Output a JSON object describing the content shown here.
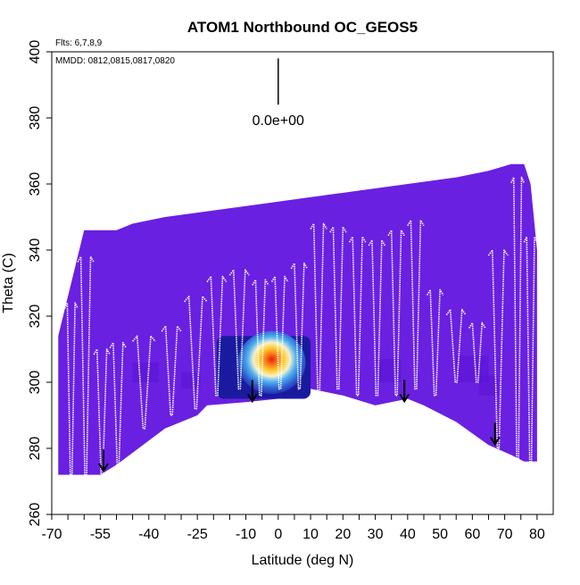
{
  "chart_data": {
    "type": "heatmap",
    "title": "ATOM1 Northbound OC_GEOS5",
    "xlabel": "Latitude (deg N)",
    "ylabel": "Theta (C)",
    "xlim": [
      -70,
      85
    ],
    "ylim": [
      260,
      400
    ],
    "x_ticks_major": [
      -70,
      -55,
      -40,
      -25,
      -10,
      0,
      10,
      20,
      30,
      40,
      50,
      60,
      70,
      80
    ],
    "x_ticks_minor": [
      -65,
      -60,
      -50,
      -45,
      -35,
      -30,
      -20,
      -15,
      -5,
      5,
      15,
      25,
      35,
      45,
      55,
      65,
      75
    ],
    "x_tick_labels": [
      "-70",
      "-55",
      "-40",
      "-25",
      "-10",
      "0",
      "10",
      "20",
      "30",
      "40",
      "50",
      "60",
      "70",
      "80"
    ],
    "y_ticks": [
      260,
      280,
      300,
      320,
      340,
      360,
      380,
      400
    ],
    "y_tick_labels": [
      "260",
      "280",
      "300",
      "320",
      "340",
      "360",
      "380",
      "400"
    ],
    "flights_note": "Flts: 6,7,8,9",
    "dates_note": "MMDD: 0812,0815,0817,0820",
    "scale_label": "0.0e+00",
    "scale_bar": {
      "x": 0,
      "y_top": 398,
      "y_bottom": 384
    },
    "colors": {
      "background_field": "#6a20e0",
      "field_shade": "#5a14d4",
      "deep_blue": "#1a1aa0",
      "mid_blue": "#2f5fd0",
      "light_blue": "#4fb0f0",
      "pale": "#f4f0d0",
      "yellow": "#ffd23a",
      "orange": "#ff8a1a",
      "red": "#e41e12",
      "flight_track": "#ffffff"
    },
    "field_top": [
      {
        "lat": -68,
        "theta": 314
      },
      {
        "lat": -67,
        "theta": 318
      },
      {
        "lat": -66,
        "theta": 322
      },
      {
        "lat": -65,
        "theta": 326
      },
      {
        "lat": -64,
        "theta": 330
      },
      {
        "lat": -63,
        "theta": 334
      },
      {
        "lat": -62,
        "theta": 338
      },
      {
        "lat": -61,
        "theta": 342
      },
      {
        "lat": -60,
        "theta": 346
      },
      {
        "lat": -50,
        "theta": 346
      },
      {
        "lat": -45,
        "theta": 348
      },
      {
        "lat": -35,
        "theta": 350
      },
      {
        "lat": -20,
        "theta": 352
      },
      {
        "lat": -5,
        "theta": 354
      },
      {
        "lat": 10,
        "theta": 356
      },
      {
        "lat": 25,
        "theta": 358
      },
      {
        "lat": 40,
        "theta": 360
      },
      {
        "lat": 55,
        "theta": 362
      },
      {
        "lat": 65,
        "theta": 364
      },
      {
        "lat": 72,
        "theta": 366
      },
      {
        "lat": 76,
        "theta": 366
      },
      {
        "lat": 78,
        "theta": 360
      },
      {
        "lat": 79,
        "theta": 350
      },
      {
        "lat": 80,
        "theta": 340
      }
    ],
    "field_bottom": [
      {
        "lat": -68,
        "theta": 272
      },
      {
        "lat": -55,
        "theta": 272
      },
      {
        "lat": -50,
        "theta": 275
      },
      {
        "lat": -35,
        "theta": 286
      },
      {
        "lat": -25,
        "theta": 290
      },
      {
        "lat": -22,
        "theta": 293
      },
      {
        "lat": -10,
        "theta": 294
      },
      {
        "lat": 0,
        "theta": 295
      },
      {
        "lat": 10,
        "theta": 298
      },
      {
        "lat": 20,
        "theta": 296
      },
      {
        "lat": 30,
        "theta": 293
      },
      {
        "lat": 40,
        "theta": 295
      },
      {
        "lat": 45,
        "theta": 293
      },
      {
        "lat": 55,
        "theta": 288
      },
      {
        "lat": 65,
        "theta": 281
      },
      {
        "lat": 72,
        "theta": 278
      },
      {
        "lat": 76,
        "theta": 276
      },
      {
        "lat": 80,
        "theta": 276
      },
      {
        "lat": 80,
        "theta": 340
      }
    ],
    "hotspot": {
      "center_lat": -2,
      "center_theta": 306,
      "extent_lat": [
        -19,
        10
      ],
      "extent_theta": [
        295,
        314
      ],
      "peak_value_label": ""
    },
    "tropopause_arrows": [
      {
        "lat": -54,
        "theta": 277
      },
      {
        "lat": -8,
        "theta": 298
      },
      {
        "lat": 39,
        "theta": 298
      },
      {
        "lat": 67,
        "theta": 285
      }
    ],
    "flight_profiles": [
      {
        "lat_start": -66,
        "lat_end": -62,
        "theta_low": 272,
        "theta_high": 324
      },
      {
        "lat_start": -62,
        "lat_end": -57,
        "theta_low": 272,
        "theta_high": 338
      },
      {
        "lat_start": -57,
        "lat_end": -52,
        "theta_low": 272,
        "theta_high": 310
      },
      {
        "lat_start": -52,
        "lat_end": -47,
        "theta_low": 275,
        "theta_high": 312
      },
      {
        "lat_start": -45,
        "lat_end": -38,
        "theta_low": 286,
        "theta_high": 314
      },
      {
        "lat_start": -36,
        "lat_end": -30,
        "theta_low": 290,
        "theta_high": 317
      },
      {
        "lat_start": -29,
        "lat_end": -22,
        "theta_low": 292,
        "theta_high": 326
      },
      {
        "lat_start": -22,
        "lat_end": -16,
        "theta_low": 296,
        "theta_high": 332
      },
      {
        "lat_start": -15,
        "lat_end": -9,
        "theta_low": 298,
        "theta_high": 334
      },
      {
        "lat_start": -8,
        "lat_end": -3,
        "theta_low": 296,
        "theta_high": 331
      },
      {
        "lat_start": -2,
        "lat_end": 3,
        "theta_low": 298,
        "theta_high": 332
      },
      {
        "lat_start": 4,
        "lat_end": 9,
        "theta_low": 298,
        "theta_high": 336
      },
      {
        "lat_start": 10,
        "lat_end": 15,
        "theta_low": 296,
        "theta_high": 348
      },
      {
        "lat_start": 16,
        "lat_end": 21,
        "theta_low": 298,
        "theta_high": 347
      },
      {
        "lat_start": 22,
        "lat_end": 27,
        "theta_low": 296,
        "theta_high": 344
      },
      {
        "lat_start": 28,
        "lat_end": 33,
        "theta_low": 296,
        "theta_high": 343
      },
      {
        "lat_start": 34,
        "lat_end": 39,
        "theta_low": 296,
        "theta_high": 346
      },
      {
        "lat_start": 40,
        "lat_end": 45,
        "theta_low": 298,
        "theta_high": 349
      },
      {
        "lat_start": 46,
        "lat_end": 51,
        "theta_low": 296,
        "theta_high": 328
      },
      {
        "lat_start": 52,
        "lat_end": 58,
        "theta_low": 300,
        "theta_high": 322
      },
      {
        "lat_start": 59,
        "lat_end": 64,
        "theta_low": 300,
        "theta_high": 318
      },
      {
        "lat_start": 65,
        "lat_end": 71,
        "theta_low": 280,
        "theta_high": 340
      },
      {
        "lat_start": 72,
        "lat_end": 76,
        "theta_low": 276,
        "theta_high": 362
      },
      {
        "lat_start": 76,
        "lat_end": 80,
        "theta_low": 276,
        "theta_high": 344
      }
    ]
  }
}
